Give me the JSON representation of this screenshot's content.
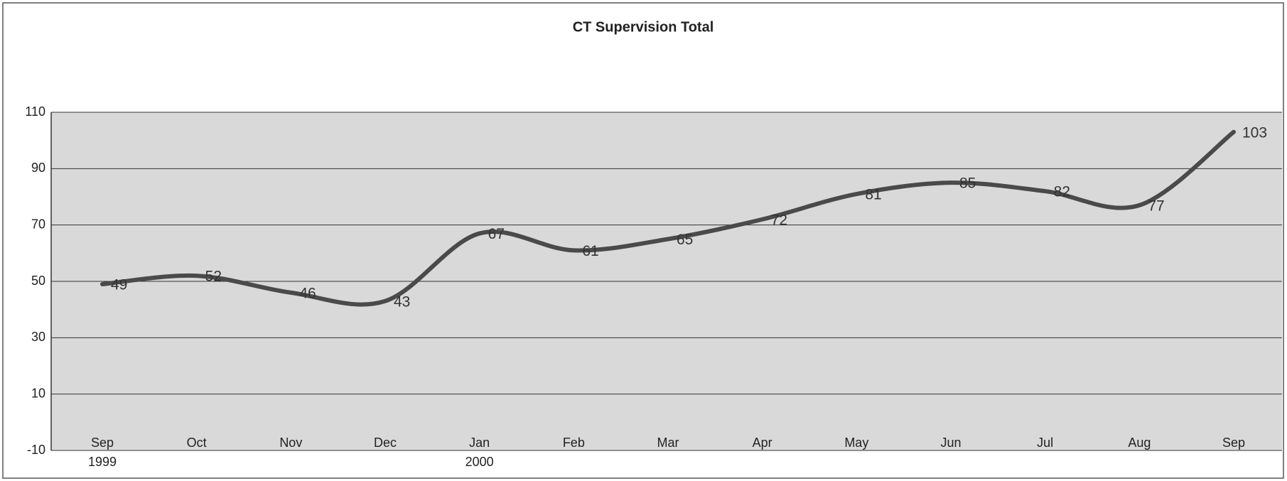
{
  "chart_data": {
    "type": "line",
    "title": "CT Supervision Total",
    "categories": [
      "Sep",
      "Oct",
      "Nov",
      "Dec",
      "Jan",
      "Feb",
      "Mar",
      "Apr",
      "May",
      "Jun",
      "Jul",
      "Aug",
      "Sep"
    ],
    "years": [
      "1999",
      null,
      null,
      null,
      "2000",
      null,
      null,
      null,
      null,
      null,
      null,
      null,
      null
    ],
    "values": [
      49,
      52,
      46,
      43,
      67,
      61,
      65,
      72,
      81,
      85,
      82,
      77,
      103
    ],
    "color": "#4a4a4a",
    "smooth": true,
    "ylim": [
      -10,
      110
    ],
    "yticks": [
      -10,
      10,
      30,
      50,
      70,
      90,
      110
    ],
    "grid": true
  }
}
